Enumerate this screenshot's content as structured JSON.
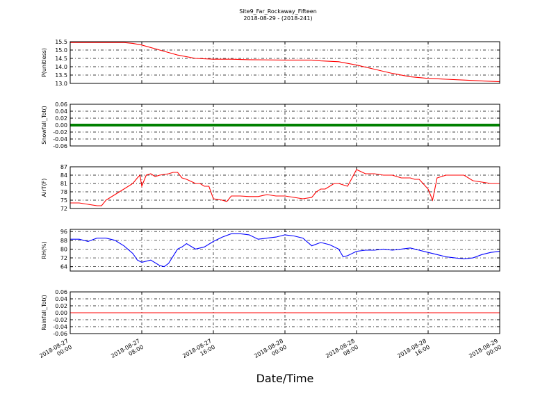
{
  "figure": {
    "title": "Site9_Far_Rockaway_Fifteen",
    "subtitle": "2018-08-29 - (2018-241)",
    "xlabel": "Date/Time",
    "x_ticks": [
      [
        "2018-08-27",
        "00:00"
      ],
      [
        "2018-08-27",
        "08:00"
      ],
      [
        "2018-08-27",
        "16:00"
      ],
      [
        "2018-08-28",
        "00:00"
      ],
      [
        "2018-08-28",
        "08:00"
      ],
      [
        "2018-08-28",
        "16:00"
      ],
      [
        "2018-08-29",
        "00:00"
      ]
    ]
  },
  "chart_data": [
    {
      "type": "line",
      "ylabel": "P(unitless)",
      "ylim": [
        13.0,
        15.5
      ],
      "yticks": [
        "15.5",
        "15.0",
        "14.5",
        "14.0",
        "13.5",
        "13.0"
      ],
      "color": "#ff0000",
      "x_hours": [
        0,
        4,
        6,
        7,
        8,
        10,
        12,
        14,
        16,
        18,
        20,
        24,
        27,
        28,
        30,
        32,
        34,
        36,
        38,
        40,
        42,
        44,
        46,
        48
      ],
      "values": [
        15.45,
        15.45,
        15.45,
        15.4,
        15.3,
        15.0,
        14.7,
        14.5,
        14.45,
        14.45,
        14.42,
        14.4,
        14.4,
        14.35,
        14.3,
        14.1,
        13.85,
        13.6,
        13.4,
        13.3,
        13.25,
        13.2,
        13.15,
        13.1
      ]
    },
    {
      "type": "line",
      "ylabel": "Snowfall_Tot()",
      "ylim": [
        -0.06,
        0.06
      ],
      "yticks": [
        "0.06",
        "0.04",
        "0.02",
        "0.00",
        "-0.02",
        "-0.04",
        "-0.06"
      ],
      "color": "#008000",
      "x_hours": [
        0,
        48
      ],
      "values": [
        0,
        0
      ],
      "marker": "dots"
    },
    {
      "type": "line",
      "ylabel": "AirT(F)",
      "ylim": [
        72,
        87
      ],
      "yticks": [
        "87",
        "84",
        "81",
        "78",
        "75",
        "72"
      ],
      "color": "#ff0000",
      "x_hours": [
        0,
        1,
        2,
        3,
        3.5,
        4,
        4.5,
        5,
        6,
        7,
        7.5,
        7.8,
        8,
        8.5,
        9,
        9.5,
        10,
        11,
        11.5,
        12,
        12.5,
        13,
        14,
        14.5,
        15,
        15.5,
        16,
        17,
        17.5,
        18,
        19,
        20,
        21,
        22,
        23,
        24,
        25,
        26,
        27,
        27.5,
        28,
        28.5,
        29,
        29.5,
        30,
        31,
        32,
        33,
        34,
        35,
        36,
        37,
        38,
        38.5,
        39,
        40,
        40.5,
        41,
        42,
        43,
        44,
        45,
        46,
        47,
        48
      ],
      "values": [
        74,
        74,
        73.5,
        73,
        73,
        75,
        76,
        77,
        79,
        81,
        83,
        84,
        80,
        84,
        84.5,
        83.5,
        84,
        84.5,
        85,
        85,
        83,
        82.5,
        81,
        81,
        80,
        80,
        75.5,
        75,
        74.5,
        76.5,
        76.5,
        76.3,
        76.3,
        77,
        76.5,
        76.5,
        76,
        75.5,
        76,
        78,
        79,
        79,
        80,
        81,
        81,
        80,
        86,
        84.5,
        84.5,
        84,
        84,
        83,
        83,
        82.5,
        82.5,
        79,
        75,
        83,
        84,
        84,
        84,
        82,
        81.5,
        81,
        81
      ]
    },
    {
      "type": "line",
      "ylabel": "RH(%)",
      "ylim": [
        60,
        98
      ],
      "yticks": [
        "96",
        "88",
        "80",
        "72",
        "64"
      ],
      "color": "#0000ff",
      "x_hours": [
        0,
        1,
        2,
        3,
        4,
        5,
        6,
        7,
        7.5,
        8,
        9,
        10,
        10.5,
        11,
        12,
        12.5,
        13,
        14,
        15,
        16,
        17,
        18,
        19,
        20,
        21,
        22,
        23,
        24,
        25,
        26,
        27,
        28,
        29,
        30,
        30.5,
        31,
        32,
        33,
        34,
        35,
        36,
        37,
        38,
        39,
        40,
        41,
        42,
        43,
        44,
        45,
        46,
        47,
        48
      ],
      "values": [
        89,
        89,
        87,
        90,
        90,
        88,
        83,
        76,
        70,
        68,
        70,
        65,
        64,
        67,
        80,
        82,
        85,
        80,
        82,
        87,
        91,
        94,
        94,
        93,
        89,
        90,
        91,
        93,
        92,
        90,
        83,
        86,
        84,
        80,
        73,
        74,
        78,
        79,
        79,
        80,
        79,
        80,
        81,
        79,
        77,
        75,
        73,
        72,
        71,
        72,
        75,
        77,
        78
      ]
    },
    {
      "type": "line",
      "ylabel": "Rainfall_Tot()",
      "ylim": [
        -0.06,
        0.06
      ],
      "yticks": [
        "0.06",
        "0.04",
        "0.02",
        "0.00",
        "-0.02",
        "-0.04",
        "-0.06"
      ],
      "color": "#ff0000",
      "x_hours": [
        0,
        48
      ],
      "values": [
        0,
        0
      ]
    }
  ]
}
